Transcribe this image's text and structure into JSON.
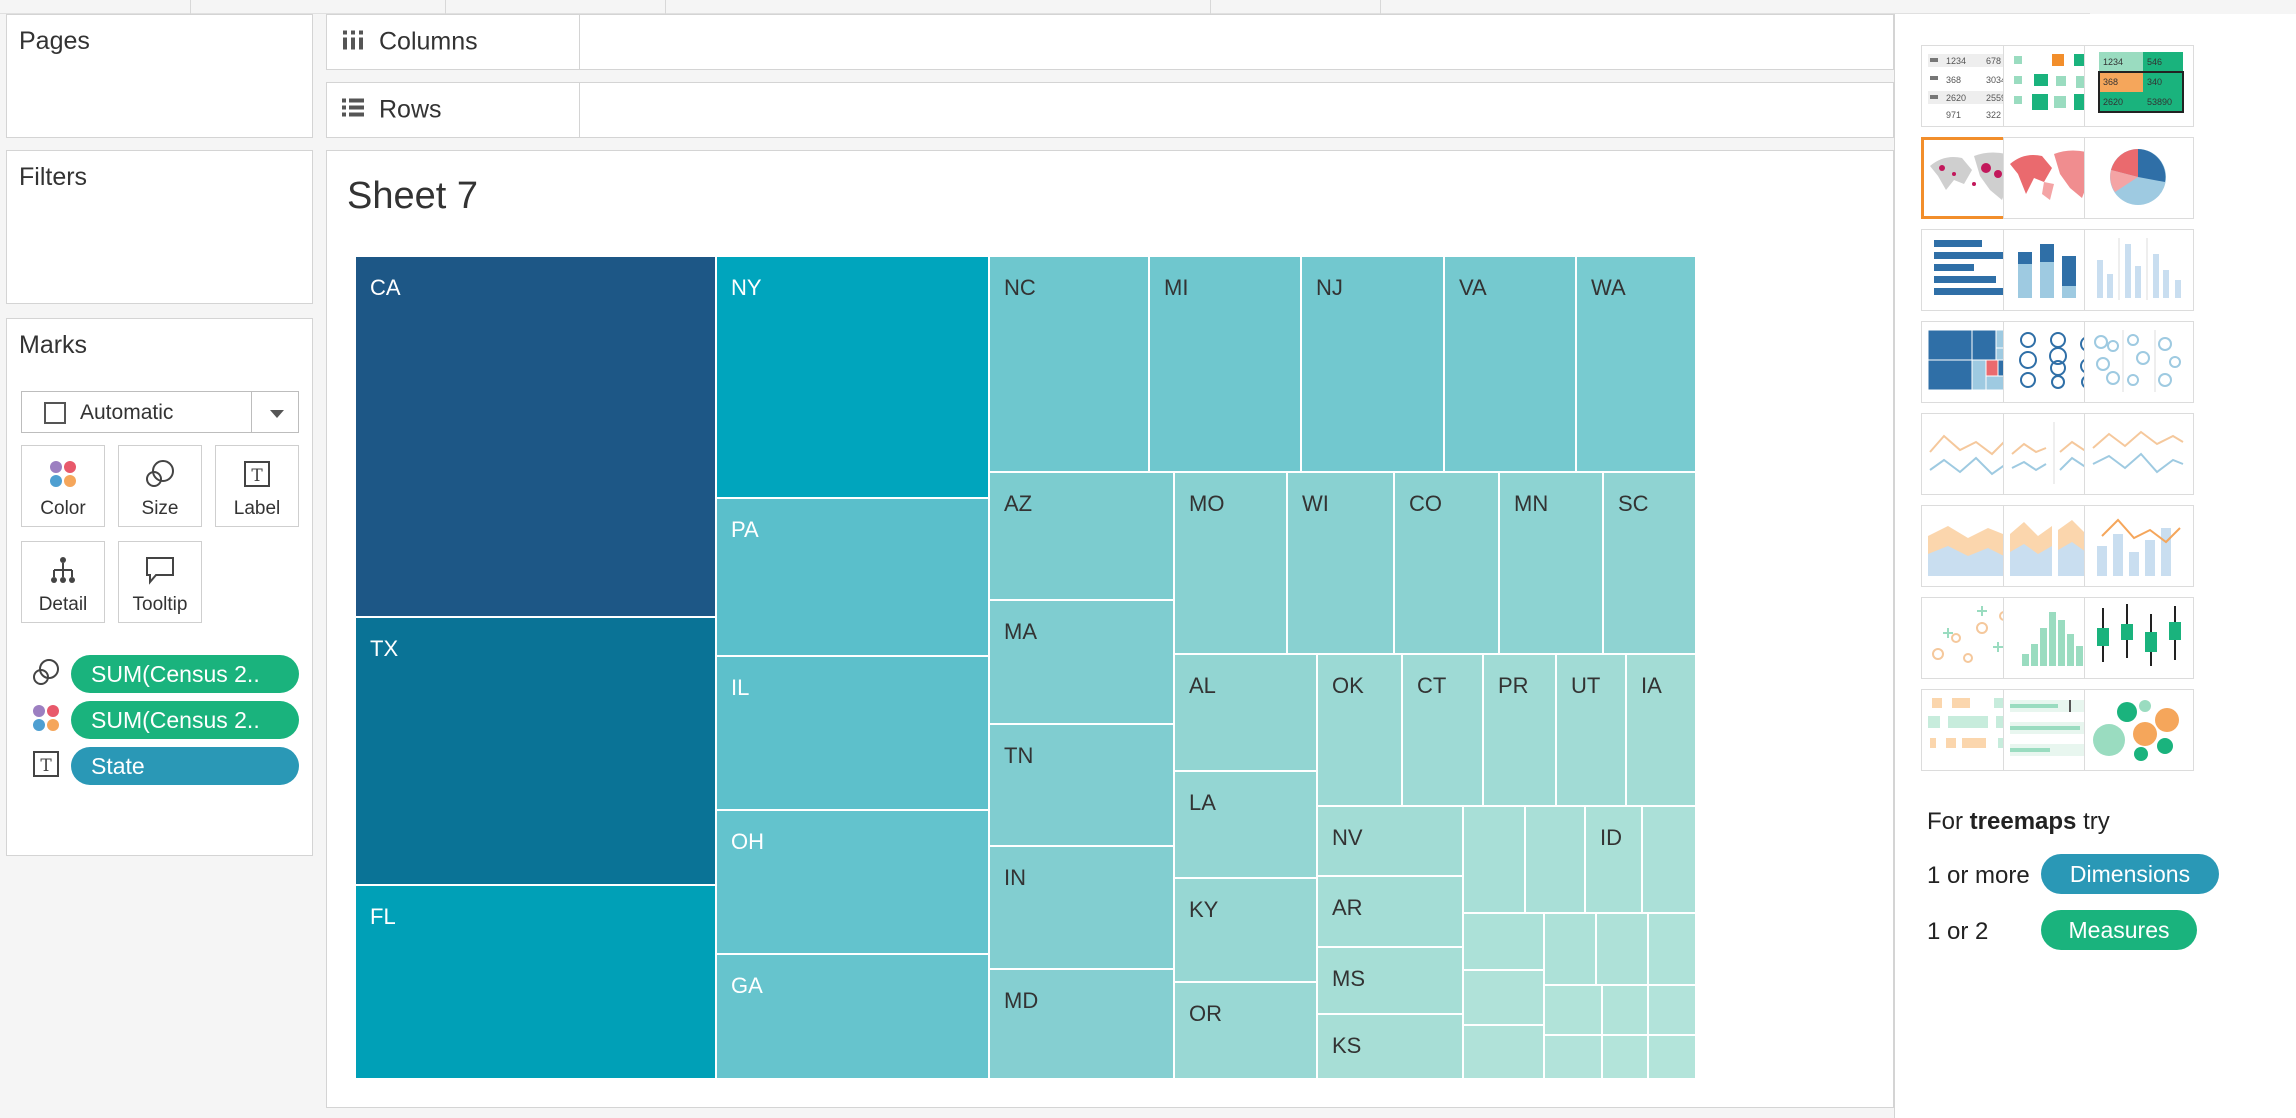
{
  "shelves": {
    "pages": "Pages",
    "filters": "Filters",
    "marks": "Marks",
    "columns": "Columns",
    "rows": "Rows"
  },
  "marks": {
    "mark_type": "Automatic",
    "buttons": {
      "color": "Color",
      "size": "Size",
      "label": "Label",
      "detail": "Detail",
      "tooltip": "Tooltip"
    },
    "pills": [
      {
        "icon": "size-icon",
        "text": "SUM(Census 2..",
        "color": "#1ab37d"
      },
      {
        "icon": "color-icon",
        "text": "SUM(Census 2..",
        "color": "#1ab37d"
      },
      {
        "icon": "label-icon",
        "text": "State",
        "color": "#2a98b6"
      }
    ]
  },
  "sheet": {
    "title": "Sheet 7"
  },
  "treemap": {
    "tiles": [
      {
        "label": "CA",
        "color": "#1d5786"
      },
      {
        "label": "TX",
        "color": "#0a7396"
      },
      {
        "label": "FL",
        "color": "#00a0b7"
      },
      {
        "label": "NY",
        "color": "#00a5bd"
      },
      {
        "label": "PA",
        "color": "#5abfcb"
      },
      {
        "label": "IL",
        "color": "#5dc0cb"
      },
      {
        "label": "OH",
        "color": "#63c3cd"
      },
      {
        "label": "GA",
        "color": "#66c4cd"
      },
      {
        "label": "NC",
        "color": "#6ec7ce"
      },
      {
        "label": "MI",
        "color": "#6fc7ce"
      },
      {
        "label": "NJ",
        "color": "#72c8cf"
      },
      {
        "label": "VA",
        "color": "#75c9cf"
      },
      {
        "label": "WA",
        "color": "#78cbd0"
      },
      {
        "label": "AZ",
        "color": "#7ccccf"
      },
      {
        "label": "MA",
        "color": "#7fcdd0"
      },
      {
        "label": "TN",
        "color": "#80cdd0"
      },
      {
        "label": "IN",
        "color": "#82ced0"
      },
      {
        "label": "MD",
        "color": "#85cfd1"
      },
      {
        "label": "MO",
        "color": "#88d1d1"
      },
      {
        "label": "WI",
        "color": "#89d1d1"
      },
      {
        "label": "CO",
        "color": "#8bd2d1"
      },
      {
        "label": "MN",
        "color": "#8dd3d2"
      },
      {
        "label": "SC",
        "color": "#8fd3d2"
      },
      {
        "label": "AL",
        "color": "#92d5d2"
      },
      {
        "label": "LA",
        "color": "#94d6d3"
      },
      {
        "label": "KY",
        "color": "#97d7d3"
      },
      {
        "label": "OR",
        "color": "#99d8d4"
      },
      {
        "label": "OK",
        "color": "#9bd9d4"
      },
      {
        "label": "CT",
        "color": "#9edad5"
      },
      {
        "label": "PR",
        "color": "#a0dbd5"
      },
      {
        "label": "UT",
        "color": "#a1dbd5"
      },
      {
        "label": "IA",
        "color": "#a3dcd5"
      },
      {
        "label": "NV",
        "color": "#a2dcd5"
      },
      {
        "label": "AR",
        "color": "#a4ddd6"
      },
      {
        "label": "MS",
        "color": "#a6ded6"
      },
      {
        "label": "KS",
        "color": "#a7ded6"
      },
      {
        "label": "",
        "color": "#a8dfd7"
      },
      {
        "label": "",
        "color": "#a9dfd7"
      },
      {
        "label": "ID",
        "color": "#aae0d7"
      },
      {
        "label": "",
        "color": "#abe0d8"
      },
      {
        "label": "",
        "color": "#ace1d8"
      },
      {
        "label": "",
        "color": "#ade1d8"
      },
      {
        "label": "",
        "color": "#aee1d8"
      },
      {
        "label": "",
        "color": "#afe2d9"
      },
      {
        "label": "",
        "color": "#b0e2d9"
      },
      {
        "label": "",
        "color": "#b0e2d9"
      },
      {
        "label": "",
        "color": "#b1e3d9"
      },
      {
        "label": "",
        "color": "#b1e3d9"
      },
      {
        "label": "",
        "color": "#b2e3da"
      },
      {
        "label": "",
        "color": "#b2e3da"
      },
      {
        "label": "",
        "color": "#b3e4da"
      },
      {
        "label": "",
        "color": "#b3e4da"
      }
    ]
  },
  "show_me": {
    "selected": "symbol-map",
    "thumbnails": [
      "text-table",
      "heat-map",
      "highlight-table",
      "symbol-map",
      "filled-map",
      "pie-chart",
      "horizontal-bars",
      "stacked-bars",
      "side-by-side-bars",
      "treemap",
      "circle-view",
      "side-by-side-circles",
      "continuous-lines",
      "discrete-lines",
      "dual-lines",
      "area-continuous",
      "area-discrete",
      "dual-combination",
      "scatter-plot",
      "histogram",
      "box-and-whisker",
      "gantt-chart",
      "bullet-graph",
      "packed-bubbles"
    ],
    "table_sample": {
      "r1": [
        "1234",
        "678"
      ],
      "r2": [
        "368",
        "3034"
      ],
      "r3": [
        "2620",
        "2559"
      ],
      "r4": [
        "971",
        "322"
      ]
    },
    "highlight_sample": {
      "r1": [
        "1234",
        "546"
      ],
      "r2": [
        "368",
        "340"
      ],
      "r3": [
        "2620",
        "53890"
      ]
    },
    "hint": {
      "for_text": "For ",
      "chart_name": "treemaps",
      "try_text": " try",
      "dim_prefix": "1 or more",
      "dim_pill": "Dimensions",
      "meas_prefix": "1 or 2",
      "meas_pill": "Measures"
    }
  }
}
